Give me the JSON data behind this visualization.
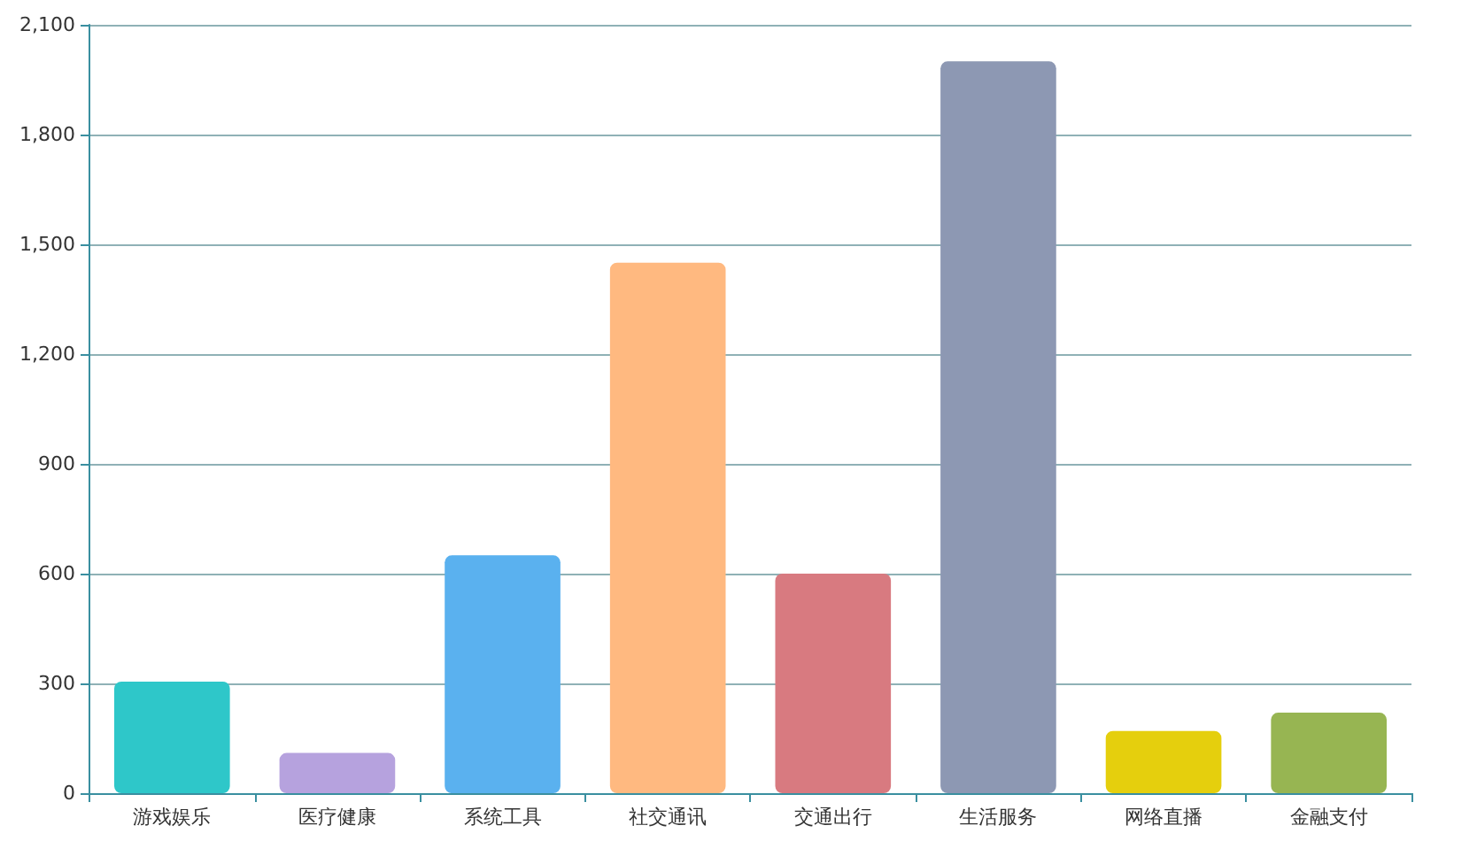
{
  "chart_data": {
    "type": "bar",
    "categories": [
      "游戏娱乐",
      "医疗健康",
      "系统工具",
      "社交通讯",
      "交通出行",
      "生活服务",
      "网络直播",
      "金融支付"
    ],
    "values": [
      305,
      110,
      650,
      1450,
      600,
      2000,
      170,
      220
    ],
    "colors": [
      "#2ec7c9",
      "#b6a2de",
      "#5ab1ef",
      "#ffb980",
      "#d87a80",
      "#8d98b3",
      "#e5cf0d",
      "#97b552"
    ],
    "ylim": [
      0,
      2100
    ],
    "yticks": [
      0,
      300,
      600,
      900,
      {
        "value": 1200,
        "label": "1,200"
      },
      {
        "value": 1500,
        "label": "1,500"
      },
      {
        "value": 1800,
        "label": "1,800"
      },
      {
        "value": 2100,
        "label": "2,100"
      }
    ],
    "grid": "y"
  }
}
